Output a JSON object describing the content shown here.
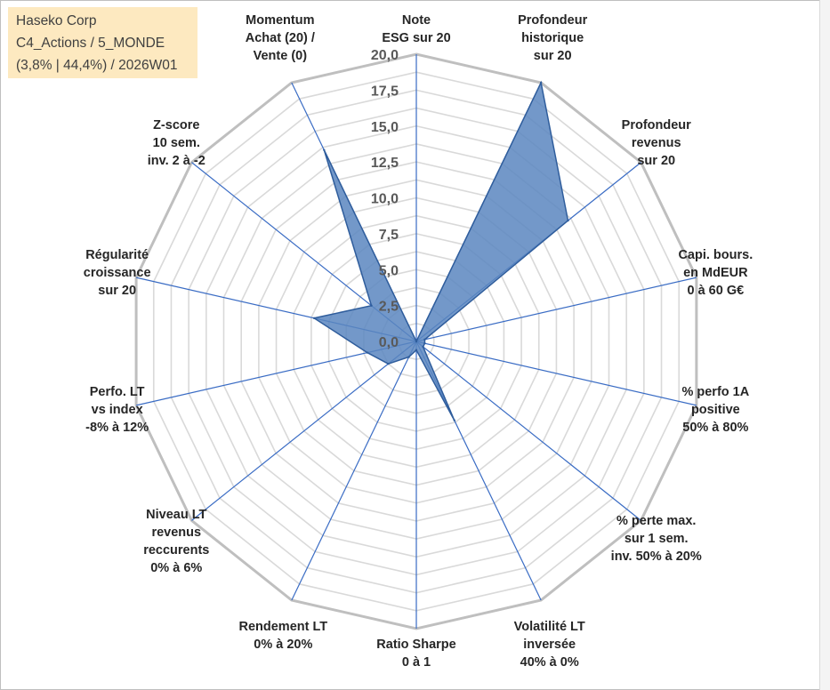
{
  "info_box": {
    "line1": "Haseko Corp",
    "line2": "C4_Actions / 5_MONDE",
    "line3": "(3,8% | 44,4%) / 2026W01"
  },
  "chart_data": {
    "type": "radar",
    "title": "",
    "rlim": [
      0,
      20
    ],
    "r_ticks": [
      "0,0",
      "2,5",
      "5,0",
      "7,5",
      "10,0",
      "12,5",
      "15,0",
      "17,5",
      "20,0"
    ],
    "grid": true,
    "colors": {
      "fill": "#5a86bf",
      "stroke": "#2f5d9c",
      "axis": "#3a6cc4",
      "grid": "#c0c0c0"
    },
    "axes": [
      {
        "label": [
          "Note",
          "ESG sur 20"
        ],
        "value": 0
      },
      {
        "label": [
          "Profondeur",
          "historique",
          "sur 20"
        ],
        "value": 20
      },
      {
        "label": [
          "Profondeur",
          "revenus",
          "sur 20"
        ],
        "value": 13.5
      },
      {
        "label": [
          "Capi. bours.",
          "en MdEUR",
          "0 à 60 G€"
        ],
        "value": 0.6
      },
      {
        "label": [
          "% perfo 1A",
          "positive",
          "50% à 80%"
        ],
        "value": 0.6
      },
      {
        "label": [
          "% perte max.",
          "sur 1 sem.",
          "inv. 50% à 20%"
        ],
        "value": 0.6
      },
      {
        "label": [
          "Volatilité LT",
          "inversée",
          "40% à 0%"
        ],
        "value": 6.1
      },
      {
        "label": [
          "Ratio Sharpe",
          "0 à 1"
        ],
        "value": 0.6
      },
      {
        "label": [
          "Rendement LT",
          "0% à 20%"
        ],
        "value": 1.2
      },
      {
        "label": [
          "Niveau LT",
          "revenus",
          "reccurents",
          "0% à 6%"
        ],
        "value": 2.5
      },
      {
        "label": [
          "Perfo. LT",
          "vs index",
          "-8% à 12%"
        ],
        "value": 3.5
      },
      {
        "label": [
          "Régularité",
          "croissance",
          "sur 20"
        ],
        "value": 7.3
      },
      {
        "label": [
          "Z-score",
          "10 sem.",
          "inv. 2 à -2"
        ],
        "value": 4.0
      },
      {
        "label": [
          "Momentum",
          "Achat (20) /",
          "Vente (0)"
        ],
        "value": 14.8
      }
    ]
  }
}
